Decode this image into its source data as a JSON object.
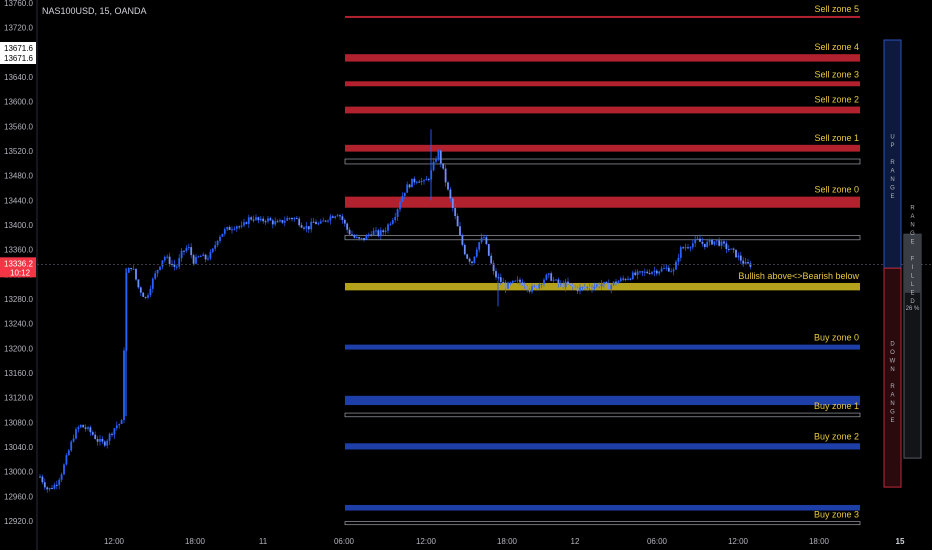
{
  "symbol_title": "NAS100USD, 15, OANDA",
  "price_tags": {
    "top_a": "13671.6",
    "top_b": "13671.6",
    "current": "13336.2",
    "countdown": "10:12"
  },
  "side_labels": {
    "up_range": "UP RANGE",
    "down_range": "DOWN RANGE",
    "range_filled": "RANGE FILLED",
    "filled_pct": "26 %"
  },
  "colors": {
    "background": "#000000",
    "sell_zone": "#b2222e",
    "buy_zone": "#1f3fa8",
    "pivot_zone": "#b5a21c",
    "label": "#e8c840",
    "candle": "#2962ff",
    "current_tag": "#f23645"
  },
  "chart_data": {
    "type": "candlestick",
    "title": "NAS100USD, 15, OANDA",
    "ylim": [
      12910,
      13760
    ],
    "y_ticks": [
      "13760.0",
      "13720.0",
      "13680.0",
      "13640.0",
      "13600.0",
      "13560.0",
      "13520.0",
      "13480.0",
      "13440.0",
      "13400.0",
      "13360.0",
      "13320.0",
      "13280.0",
      "13240.0",
      "13200.0",
      "13160.0",
      "13120.0",
      "13080.0",
      "13040.0",
      "13000.0",
      "12960.0",
      "12920.0"
    ],
    "x_ticks": [
      "12:00",
      "18:00",
      "11",
      "06:00",
      "12:00",
      "18:00",
      "12",
      "06:00",
      "12:00",
      "18:00",
      "15"
    ],
    "current_price": 13336.2,
    "zones": [
      {
        "label": "Sell zone 5",
        "kind": "sell",
        "low": 13737,
        "high": 13739
      },
      {
        "label": "Sell zone 4",
        "kind": "sell",
        "low": 13665,
        "high": 13677
      },
      {
        "label": "Sell zone 3",
        "kind": "sell",
        "low": 13625,
        "high": 13633
      },
      {
        "label": "Sell zone 2",
        "kind": "sell",
        "low": 13581,
        "high": 13592
      },
      {
        "label": "Sell zone 1",
        "kind": "sell",
        "low": 13519,
        "high": 13530
      },
      {
        "label": "",
        "kind": "outline",
        "low": 13499,
        "high": 13507
      },
      {
        "label": "Sell zone 0",
        "kind": "sell",
        "low": 13428,
        "high": 13446
      },
      {
        "label": "",
        "kind": "outline",
        "low": 13376,
        "high": 13383
      },
      {
        "label": "Bullish above<>Bearish below",
        "kind": "pivot",
        "low": 13294,
        "high": 13306
      },
      {
        "label": "Buy zone 0",
        "kind": "buy",
        "low": 13198,
        "high": 13206
      },
      {
        "label": "",
        "kind": "buy",
        "low": 13108,
        "high": 13123
      },
      {
        "label": "Buy zone 1",
        "kind": "outline",
        "low": 13089,
        "high": 13095
      },
      {
        "label": "Buy zone 2",
        "kind": "buy",
        "low": 13036,
        "high": 13046
      },
      {
        "label": "",
        "kind": "buy",
        "low": 12937,
        "high": 12946
      },
      {
        "label": "Buy zone 3",
        "kind": "outline",
        "low": 12914,
        "high": 12919
      }
    ],
    "close_path": [
      [
        0,
        12992
      ],
      [
        8,
        12970
      ],
      [
        16,
        12980
      ],
      [
        22,
        13000
      ],
      [
        28,
        13030
      ],
      [
        34,
        13060
      ],
      [
        40,
        13075
      ],
      [
        46,
        13070
      ],
      [
        52,
        13062
      ],
      [
        58,
        13050
      ],
      [
        64,
        13045
      ],
      [
        70,
        13060
      ],
      [
        76,
        13075
      ],
      [
        82,
        13080
      ],
      [
        86,
        13320
      ],
      [
        92,
        13335
      ],
      [
        98,
        13300
      ],
      [
        102,
        13290
      ],
      [
        106,
        13280
      ],
      [
        110,
        13300
      ],
      [
        114,
        13315
      ],
      [
        118,
        13330
      ],
      [
        124,
        13350
      ],
      [
        130,
        13340
      ],
      [
        136,
        13330
      ],
      [
        142,
        13355
      ],
      [
        148,
        13365
      ],
      [
        154,
        13340
      ],
      [
        160,
        13350
      ],
      [
        166,
        13345
      ],
      [
        172,
        13355
      ],
      [
        178,
        13380
      ],
      [
        184,
        13390
      ],
      [
        190,
        13395
      ],
      [
        196,
        13400
      ],
      [
        202,
        13395
      ],
      [
        208,
        13410
      ],
      [
        214,
        13412
      ],
      [
        220,
        13405
      ],
      [
        226,
        13410
      ],
      [
        232,
        13405
      ],
      [
        238,
        13402
      ],
      [
        244,
        13408
      ],
      [
        250,
        13412
      ],
      [
        256,
        13410
      ],
      [
        262,
        13400
      ],
      [
        268,
        13395
      ],
      [
        274,
        13405
      ],
      [
        280,
        13400
      ],
      [
        286,
        13410
      ],
      [
        292,
        13415
      ],
      [
        298,
        13420
      ],
      [
        302,
        13410
      ],
      [
        308,
        13390
      ],
      [
        314,
        13380
      ],
      [
        320,
        13375
      ],
      [
        326,
        13380
      ],
      [
        332,
        13390
      ],
      [
        338,
        13385
      ],
      [
        344,
        13390
      ],
      [
        350,
        13405
      ],
      [
        356,
        13420
      ],
      [
        360,
        13440
      ],
      [
        366,
        13460
      ],
      [
        372,
        13470
      ],
      [
        378,
        13475
      ],
      [
        384,
        13468
      ],
      [
        390,
        13480
      ],
      [
        394,
        13500
      ],
      [
        398,
        13520
      ],
      [
        402,
        13495
      ],
      [
        408,
        13455
      ],
      [
        414,
        13420
      ],
      [
        420,
        13380
      ],
      [
        426,
        13350
      ],
      [
        432,
        13340
      ],
      [
        438,
        13370
      ],
      [
        444,
        13380
      ],
      [
        448,
        13355
      ],
      [
        454,
        13320
      ],
      [
        460,
        13310
      ],
      [
        466,
        13300
      ],
      [
        472,
        13305
      ],
      [
        478,
        13308
      ],
      [
        484,
        13306
      ],
      [
        490,
        13295
      ],
      [
        496,
        13300
      ],
      [
        502,
        13310
      ],
      [
        508,
        13318
      ],
      [
        514,
        13310
      ],
      [
        520,
        13302
      ],
      [
        526,
        13304
      ],
      [
        532,
        13300
      ],
      [
        538,
        13296
      ],
      [
        544,
        13298
      ],
      [
        550,
        13300
      ],
      [
        556,
        13302
      ],
      [
        562,
        13305
      ],
      [
        568,
        13300
      ],
      [
        574,
        13306
      ],
      [
        580,
        13310
      ],
      [
        586,
        13314
      ],
      [
        592,
        13318
      ],
      [
        598,
        13320
      ],
      [
        604,
        13322
      ],
      [
        610,
        13325
      ],
      [
        616,
        13326
      ],
      [
        622,
        13328
      ],
      [
        628,
        13330
      ],
      [
        634,
        13325
      ],
      [
        640,
        13360
      ],
      [
        646,
        13365
      ],
      [
        652,
        13370
      ],
      [
        658,
        13375
      ],
      [
        664,
        13368
      ],
      [
        670,
        13372
      ],
      [
        676,
        13374
      ],
      [
        682,
        13368
      ],
      [
        688,
        13362
      ],
      [
        694,
        13355
      ],
      [
        700,
        13345
      ],
      [
        706,
        13335
      ],
      [
        712,
        13336
      ]
    ]
  }
}
